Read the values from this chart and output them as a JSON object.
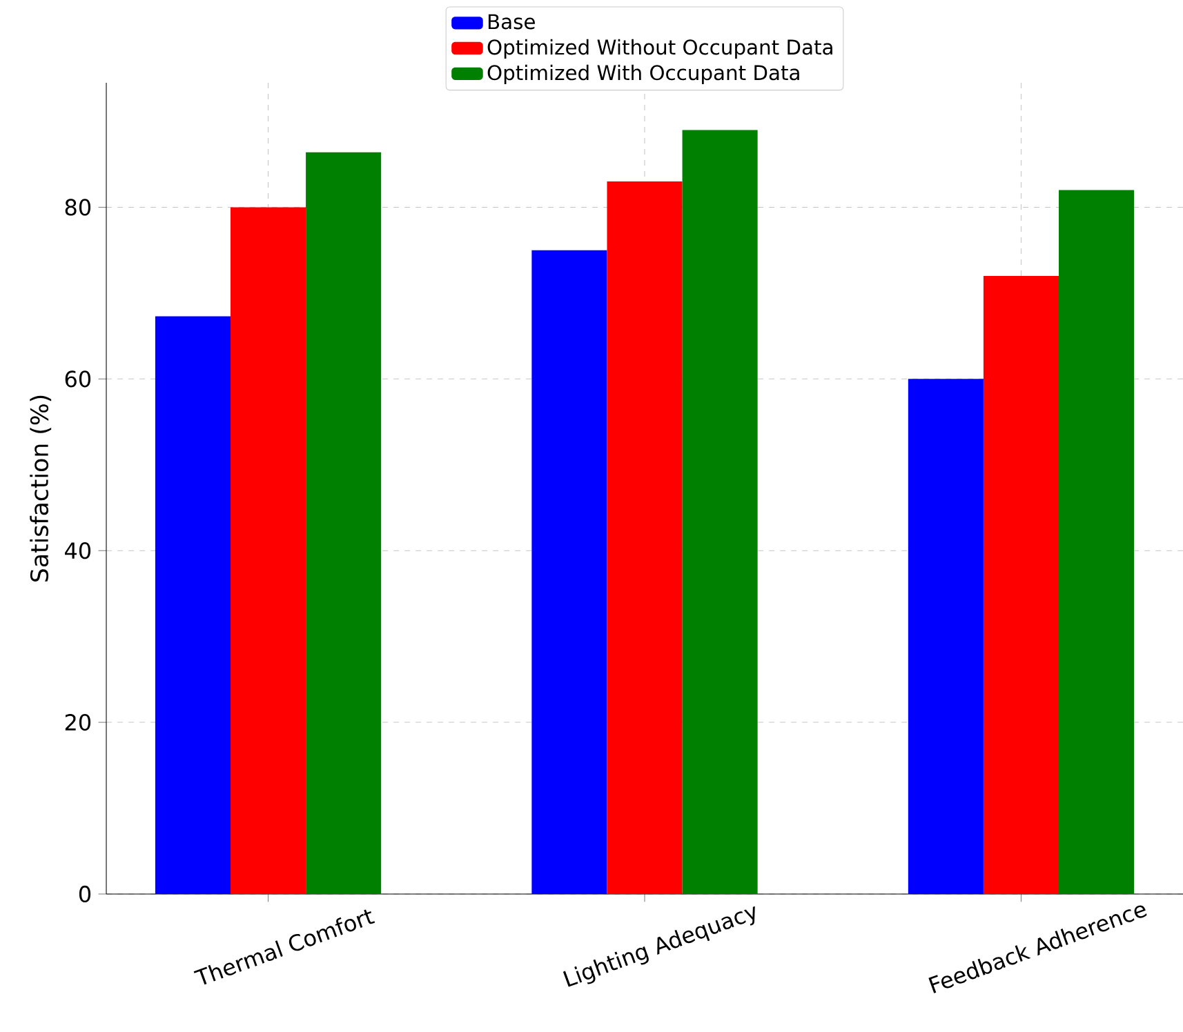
{
  "chart_data": {
    "type": "bar",
    "ylabel": "Satisfaction (%)",
    "categories": [
      "Thermal Comfort",
      "Lighting Adequacy",
      "Feedback Adherence"
    ],
    "series": [
      {
        "name": "Base",
        "color": "#0000ff",
        "values": [
          67.3,
          75,
          60
        ]
      },
      {
        "name": "Optimized Without Occupant Data",
        "color": "#ff0000",
        "values": [
          80,
          83,
          72
        ]
      },
      {
        "name": "Optimized With Occupant Data",
        "color": "#008000",
        "values": [
          86.4,
          89,
          82
        ]
      }
    ],
    "ylim": [
      0,
      94.5
    ],
    "yticks": [
      0,
      20,
      40,
      60,
      80
    ],
    "grid": true,
    "legend": "top"
  }
}
